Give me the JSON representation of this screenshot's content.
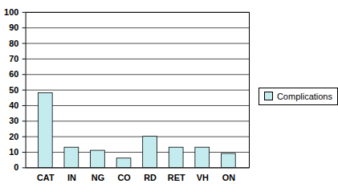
{
  "chart_data": {
    "type": "bar",
    "categories": [
      "CAT",
      "IN",
      "NG",
      "CO",
      "RD",
      "RET",
      "VH",
      "ON"
    ],
    "series": [
      {
        "name": "Complications",
        "color": "#c4ecee",
        "values": [
          48,
          13,
          11,
          6,
          20,
          13,
          13,
          9
        ]
      }
    ],
    "ylim": [
      0,
      100
    ],
    "yticks": [
      0,
      10,
      20,
      30,
      40,
      50,
      60,
      70,
      80,
      90,
      100
    ],
    "grid": true,
    "legend": "right"
  }
}
